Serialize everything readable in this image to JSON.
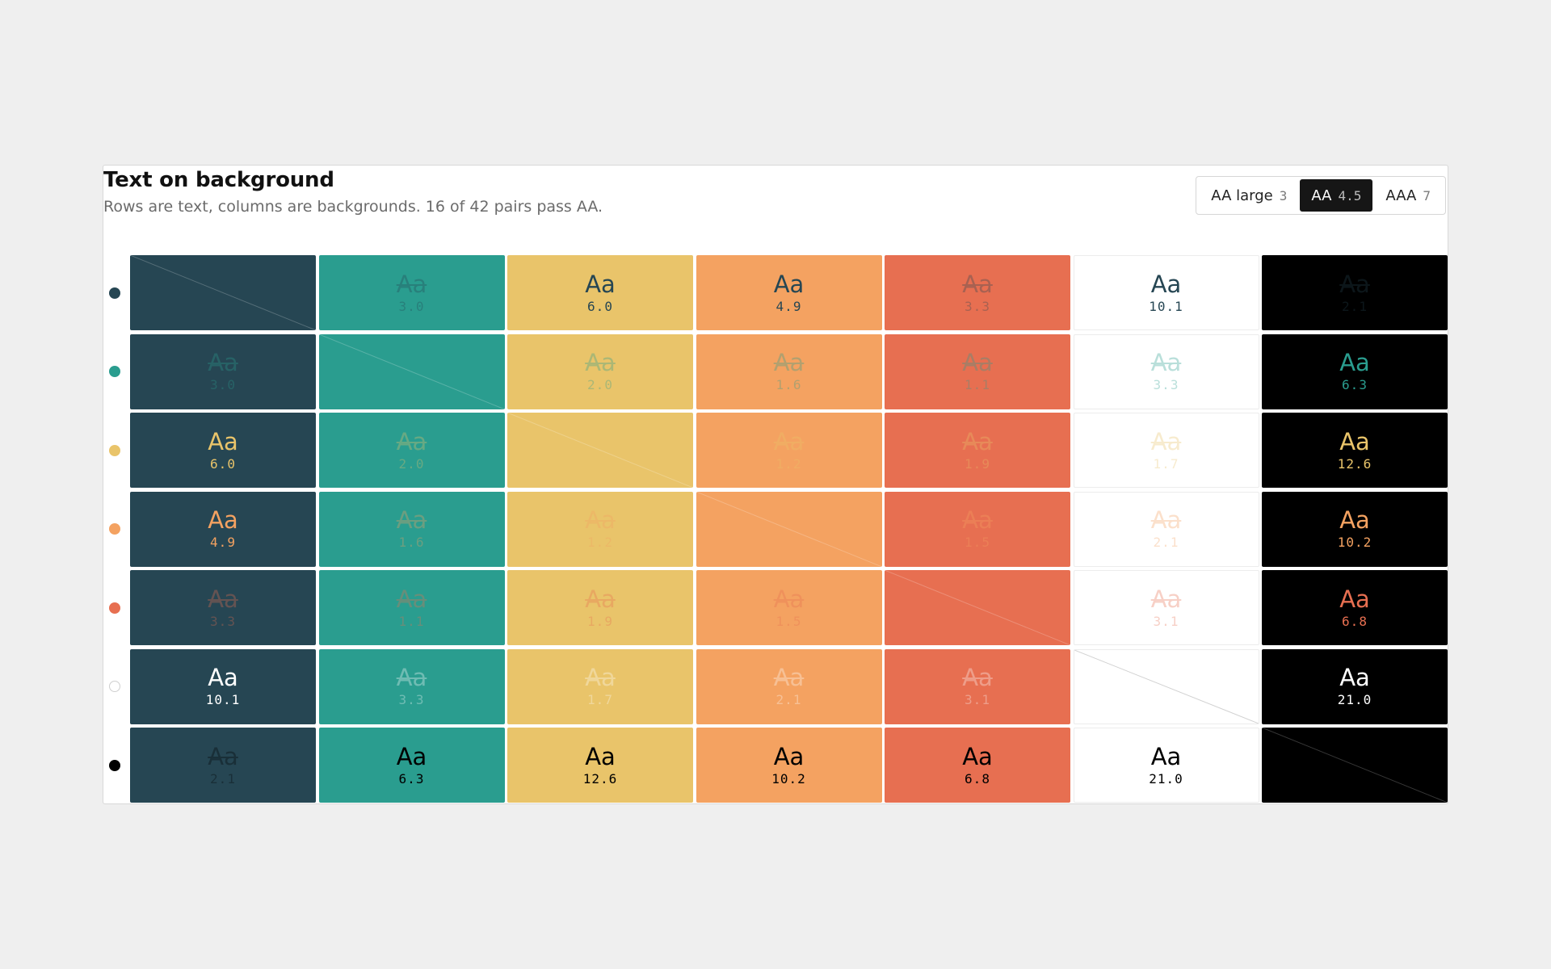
{
  "header": {
    "title": "Text on background",
    "subtitle": "Rows are text, columns are backgrounds. 16 of 42 pairs pass AA."
  },
  "levels": [
    {
      "label": "AA large",
      "value": "3",
      "active": false
    },
    {
      "label": "AA",
      "value": "4.5",
      "active": true
    },
    {
      "label": "AAA",
      "value": "7",
      "active": false
    }
  ],
  "sample_text": "Aa",
  "colors": [
    "#264653",
    "#2a9d8f",
    "#e9c46a",
    "#f4a261",
    "#e76f51",
    "#ffffff",
    "#000000"
  ],
  "threshold": 4.5,
  "ratios": [
    [
      null,
      "3.0",
      "6.0",
      "4.9",
      "3.3",
      "10.1",
      "2.1"
    ],
    [
      "3.0",
      null,
      "2.0",
      "1.6",
      "1.1",
      "3.3",
      "6.3"
    ],
    [
      "6.0",
      "2.0",
      null,
      "1.2",
      "1.9",
      "1.7",
      "12.6"
    ],
    [
      "4.9",
      "1.6",
      "1.2",
      null,
      "1.5",
      "2.1",
      "10.2"
    ],
    [
      "3.3",
      "1.1",
      "1.9",
      "1.5",
      null,
      "3.1",
      "6.8"
    ],
    [
      "10.1",
      "3.3",
      "1.7",
      "2.1",
      "3.1",
      null,
      "21.0"
    ],
    [
      "2.1",
      "6.3",
      "12.6",
      "10.2",
      "6.8",
      "21.0",
      null
    ]
  ]
}
